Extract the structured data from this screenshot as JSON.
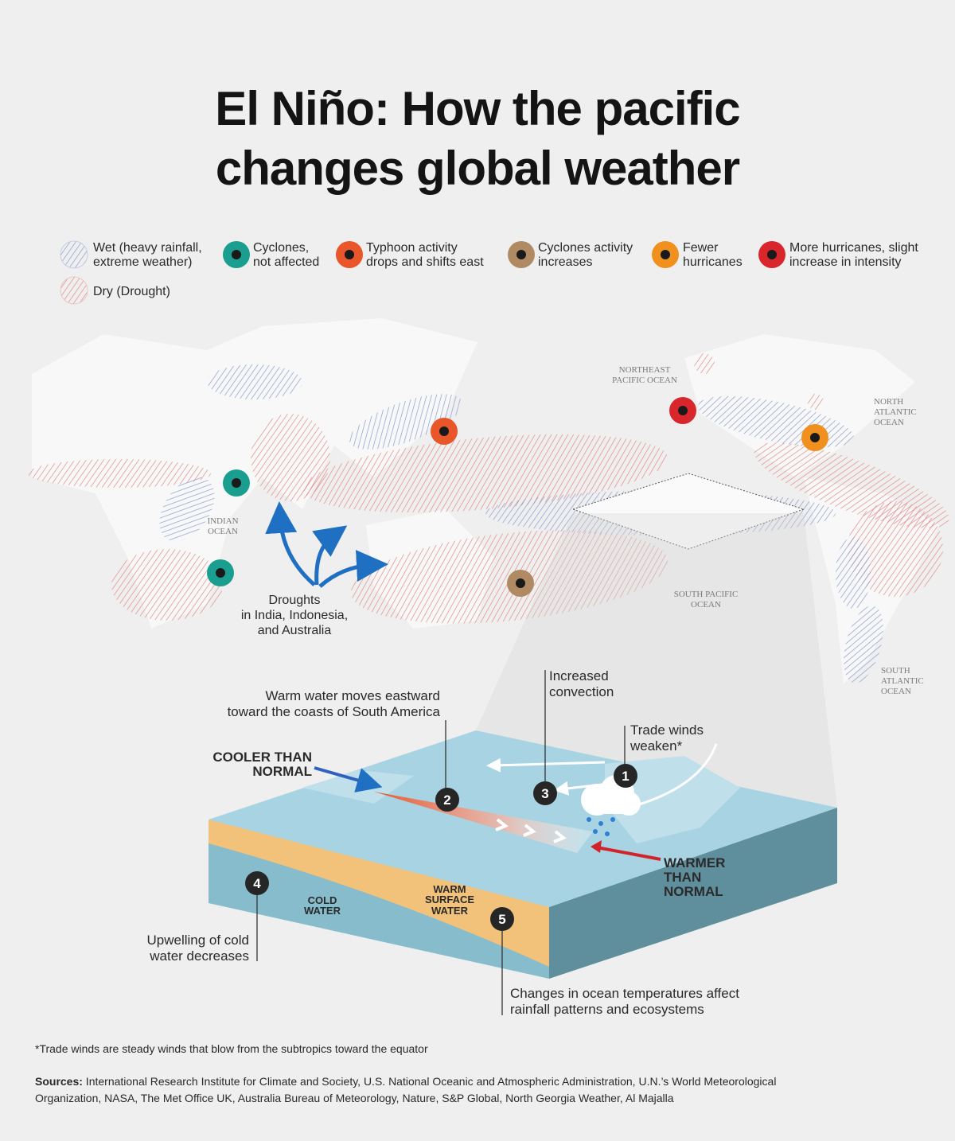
{
  "title_lines": [
    "El Niño: How the pacific",
    "changes global weather"
  ],
  "legend": [
    {
      "lines": [
        "Wet (heavy rainfall,",
        "extreme weather)"
      ]
    },
    {
      "lines": [
        "Cyclones,",
        "not affected"
      ]
    },
    {
      "lines": [
        "Typhoon activity",
        "drops and shifts east"
      ]
    },
    {
      "lines": [
        "Cyclones activity",
        "increases"
      ]
    },
    {
      "lines": [
        "Fewer",
        "hurricanes"
      ]
    },
    {
      "lines": [
        "More hurricanes, slight",
        "increase in intensity"
      ]
    },
    {
      "lines": [
        "Dry (Drought)"
      ]
    }
  ],
  "ocean_labels": [
    {
      "lines": [
        "NORTHEAST",
        "PACIFIC OCEAN"
      ]
    },
    {
      "lines": [
        "NORTH",
        "ATLANTIC",
        "OCEAN"
      ]
    },
    {
      "lines": [
        "INDIAN",
        "OCEAN"
      ]
    },
    {
      "lines": [
        "SOUTH PACIFIC",
        "OCEAN"
      ]
    },
    {
      "lines": [
        "SOUTH",
        "ATLANTIC",
        "OCEAN"
      ]
    }
  ],
  "drought_note": [
    "Droughts",
    "in India, Indonesia,",
    "and Australia"
  ],
  "diagram": {
    "callouts": [
      {
        "number": 1,
        "lines": [
          "Trade winds",
          "weaken*"
        ]
      },
      {
        "number": 2,
        "lines": [
          "Warm water moves eastward",
          "toward the coasts of South America"
        ]
      },
      {
        "number": 3,
        "lines": [
          "Increased",
          "convection"
        ]
      },
      {
        "number": 4,
        "lines": [
          "Upwelling of cold",
          "water decreases"
        ]
      },
      {
        "number": 5,
        "lines": [
          "Changes in ocean temperatures affect",
          "rainfall patterns and ecosystems"
        ]
      }
    ],
    "cooler": [
      "COOLER THAN",
      "NORMAL"
    ],
    "warmer": [
      "WARMER",
      "THAN",
      "NORMAL"
    ],
    "cold_water": [
      "COLD",
      "WATER"
    ],
    "warm_surface": [
      "WARM",
      "SURFACE",
      "WATER"
    ]
  },
  "footnote": "*Trade winds are steady winds that blow from the subtropics toward the equator",
  "sources": {
    "label": "Sources:",
    "lines": [
      " International Research Institute for Climate and Society, U.S. National Oceanic and Atmospheric Administration, U.N.’s World Meteorological",
      "Organization, NASA, The Met Office UK, Australia Bureau of Meteorology, Nature, S&P Global, North Georgia Weather, Al Majalla"
    ]
  }
}
